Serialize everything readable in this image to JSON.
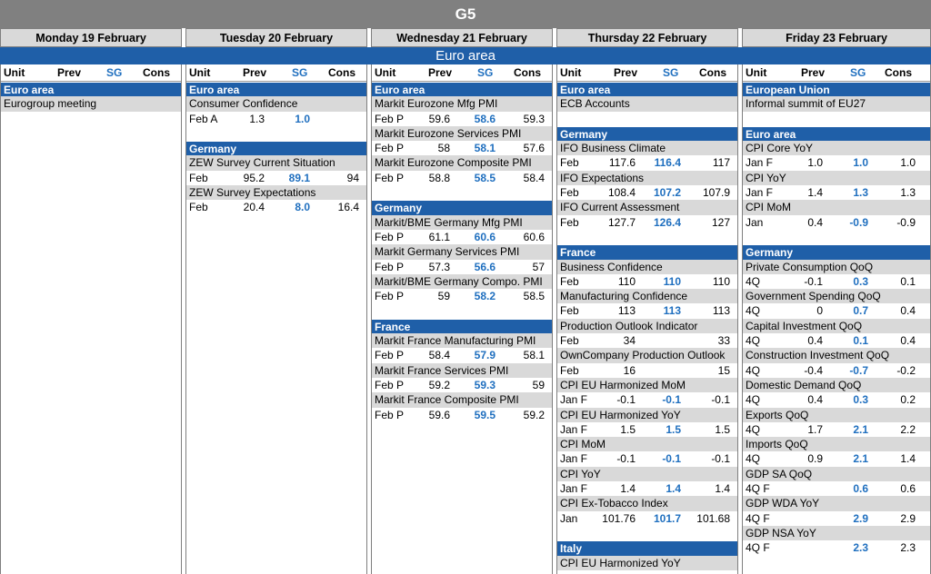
{
  "title": "G5",
  "region": "Euro area",
  "columns_header": {
    "unit": "Unit",
    "prev": "Prev",
    "sg": "SG",
    "cons": "Cons"
  },
  "days": [
    {
      "label": "Monday 19 February",
      "rows": [
        {
          "type": "sec",
          "text": "Euro area"
        },
        {
          "type": "ind",
          "text": "Eurogroup meeting"
        }
      ]
    },
    {
      "label": "Tuesday 20 February",
      "rows": [
        {
          "type": "sec",
          "text": "Euro area"
        },
        {
          "type": "ind",
          "text": "Consumer Confidence"
        },
        {
          "type": "val",
          "unit": "Feb A",
          "prev": "1.3",
          "sg": "1.0",
          "cons": ""
        },
        {
          "type": "blank"
        },
        {
          "type": "sec",
          "text": "Germany"
        },
        {
          "type": "ind",
          "text": "ZEW Survey Current Situation"
        },
        {
          "type": "val",
          "unit": "Feb",
          "prev": "95.2",
          "sg": "89.1",
          "cons": "94"
        },
        {
          "type": "ind",
          "text": "ZEW Survey Expectations"
        },
        {
          "type": "val",
          "unit": "Feb",
          "prev": "20.4",
          "sg": "8.0",
          "cons": "16.4"
        }
      ]
    },
    {
      "label": "Wednesday 21 February",
      "rows": [
        {
          "type": "sec",
          "text": "Euro area"
        },
        {
          "type": "ind",
          "text": "Markit Eurozone Mfg PMI"
        },
        {
          "type": "val",
          "unit": "Feb P",
          "prev": "59.6",
          "sg": "58.6",
          "cons": "59.3"
        },
        {
          "type": "ind",
          "text": "Markit Eurozone Services PMI"
        },
        {
          "type": "val",
          "unit": "Feb P",
          "prev": "58",
          "sg": "58.1",
          "cons": "57.6"
        },
        {
          "type": "ind",
          "text": "Markit Eurozone Composite PMI"
        },
        {
          "type": "val",
          "unit": "Feb P",
          "prev": "58.8",
          "sg": "58.5",
          "cons": "58.4"
        },
        {
          "type": "blank"
        },
        {
          "type": "sec",
          "text": "Germany"
        },
        {
          "type": "ind",
          "text": "Markit/BME Germany Mfg PMI"
        },
        {
          "type": "val",
          "unit": "Feb P",
          "prev": "61.1",
          "sg": "60.6",
          "cons": "60.6"
        },
        {
          "type": "ind",
          "text": "Markit Germany Services PMI"
        },
        {
          "type": "val",
          "unit": "Feb P",
          "prev": "57.3",
          "sg": "56.6",
          "cons": "57"
        },
        {
          "type": "ind",
          "text": "Markit/BME Germany Compo. PMI"
        },
        {
          "type": "val",
          "unit": "Feb P",
          "prev": "59",
          "sg": "58.2",
          "cons": "58.5"
        },
        {
          "type": "blank"
        },
        {
          "type": "sec",
          "text": "France"
        },
        {
          "type": "ind",
          "text": "Markit France Manufacturing PMI"
        },
        {
          "type": "val",
          "unit": "Feb P",
          "prev": "58.4",
          "sg": "57.9",
          "cons": "58.1"
        },
        {
          "type": "ind",
          "text": "Markit France Services PMI"
        },
        {
          "type": "val",
          "unit": "Feb P",
          "prev": "59.2",
          "sg": "59.3",
          "cons": "59"
        },
        {
          "type": "ind",
          "text": "Markit France Composite PMI"
        },
        {
          "type": "val",
          "unit": "Feb P",
          "prev": "59.6",
          "sg": "59.5",
          "cons": "59.2"
        }
      ]
    },
    {
      "label": "Thursday 22 February",
      "rows": [
        {
          "type": "sec",
          "text": "Euro area"
        },
        {
          "type": "ind",
          "text": "ECB Accounts"
        },
        {
          "type": "blank"
        },
        {
          "type": "sec",
          "text": "Germany"
        },
        {
          "type": "ind",
          "text": "IFO Business Climate"
        },
        {
          "type": "val",
          "unit": "Feb",
          "prev": "117.6",
          "sg": "116.4",
          "cons": "117"
        },
        {
          "type": "ind",
          "text": "IFO Expectations"
        },
        {
          "type": "val",
          "unit": "Feb",
          "prev": "108.4",
          "sg": "107.2",
          "cons": "107.9"
        },
        {
          "type": "ind",
          "text": "IFO Current Assessment"
        },
        {
          "type": "val",
          "unit": "Feb",
          "prev": "127.7",
          "sg": "126.4",
          "cons": "127"
        },
        {
          "type": "blank"
        },
        {
          "type": "sec",
          "text": "France"
        },
        {
          "type": "ind",
          "text": "Business Confidence"
        },
        {
          "type": "val",
          "unit": "Feb",
          "prev": "110",
          "sg": "110",
          "cons": "110"
        },
        {
          "type": "ind",
          "text": "Manufacturing Confidence"
        },
        {
          "type": "val",
          "unit": "Feb",
          "prev": "113",
          "sg": "113",
          "cons": "113"
        },
        {
          "type": "ind",
          "text": "Production Outlook Indicator"
        },
        {
          "type": "val",
          "unit": "Feb",
          "prev": "34",
          "sg": "",
          "cons": "33"
        },
        {
          "type": "ind",
          "text": "OwnCompany Production Outlook"
        },
        {
          "type": "val",
          "unit": "Feb",
          "prev": "16",
          "sg": "",
          "cons": "15"
        },
        {
          "type": "ind",
          "text": "CPI EU Harmonized MoM"
        },
        {
          "type": "val",
          "unit": "Jan F",
          "prev": "-0.1",
          "sg": "-0.1",
          "cons": "-0.1"
        },
        {
          "type": "ind",
          "text": "CPI EU Harmonized YoY"
        },
        {
          "type": "val",
          "unit": "Jan F",
          "prev": "1.5",
          "sg": "1.5",
          "cons": "1.5"
        },
        {
          "type": "ind",
          "text": "CPI MoM"
        },
        {
          "type": "val",
          "unit": "Jan F",
          "prev": "-0.1",
          "sg": "-0.1",
          "cons": "-0.1"
        },
        {
          "type": "ind",
          "text": "CPI YoY"
        },
        {
          "type": "val",
          "unit": "Jan F",
          "prev": "1.4",
          "sg": "1.4",
          "cons": "1.4"
        },
        {
          "type": "ind",
          "text": "CPI Ex-Tobacco Index"
        },
        {
          "type": "val",
          "unit": "Jan",
          "prev": "101.76",
          "sg": "101.7",
          "cons": "101.68"
        },
        {
          "type": "blank"
        },
        {
          "type": "sec",
          "text": "Italy"
        },
        {
          "type": "ind",
          "text": "CPI EU Harmonized YoY"
        }
      ]
    },
    {
      "label": "Friday 23 February",
      "rows": [
        {
          "type": "sec",
          "text": "European Union"
        },
        {
          "type": "ind",
          "text": "Informal summit of EU27"
        },
        {
          "type": "blank"
        },
        {
          "type": "sec",
          "text": "Euro area"
        },
        {
          "type": "ind",
          "text": "CPI Core YoY"
        },
        {
          "type": "val",
          "unit": "Jan F",
          "prev": "1.0",
          "sg": "1.0",
          "cons": "1.0"
        },
        {
          "type": "ind",
          "text": "CPI YoY"
        },
        {
          "type": "val",
          "unit": "Jan F",
          "prev": "1.4",
          "sg": "1.3",
          "cons": "1.3"
        },
        {
          "type": "ind",
          "text": "CPI MoM"
        },
        {
          "type": "val",
          "unit": "Jan",
          "prev": "0.4",
          "sg": "-0.9",
          "cons": "-0.9"
        },
        {
          "type": "blank"
        },
        {
          "type": "sec",
          "text": "Germany"
        },
        {
          "type": "ind",
          "text": "Private Consumption QoQ"
        },
        {
          "type": "val",
          "unit": "4Q",
          "prev": "-0.1",
          "sg": "0.3",
          "cons": "0.1"
        },
        {
          "type": "ind",
          "text": "Government Spending QoQ"
        },
        {
          "type": "val",
          "unit": "4Q",
          "prev": "0",
          "sg": "0.7",
          "cons": "0.4"
        },
        {
          "type": "ind",
          "text": "Capital Investment QoQ"
        },
        {
          "type": "val",
          "unit": "4Q",
          "prev": "0.4",
          "sg": "0.1",
          "cons": "0.4"
        },
        {
          "type": "ind",
          "text": "Construction Investment QoQ"
        },
        {
          "type": "val",
          "unit": "4Q",
          "prev": "-0.4",
          "sg": "-0.7",
          "cons": "-0.2"
        },
        {
          "type": "ind",
          "text": "Domestic Demand QoQ"
        },
        {
          "type": "val",
          "unit": "4Q",
          "prev": "0.4",
          "sg": "0.3",
          "cons": "0.2"
        },
        {
          "type": "ind",
          "text": "Exports QoQ"
        },
        {
          "type": "val",
          "unit": "4Q",
          "prev": "1.7",
          "sg": "2.1",
          "cons": "2.2"
        },
        {
          "type": "ind",
          "text": "Imports QoQ"
        },
        {
          "type": "val",
          "unit": "4Q",
          "prev": "0.9",
          "sg": "2.1",
          "cons": "1.4"
        },
        {
          "type": "ind",
          "text": "GDP SA QoQ"
        },
        {
          "type": "val",
          "unit": "4Q F",
          "prev": "",
          "sg": "0.6",
          "cons": "0.6"
        },
        {
          "type": "ind",
          "text": "GDP WDA YoY"
        },
        {
          "type": "val",
          "unit": "4Q F",
          "prev": "",
          "sg": "2.9",
          "cons": "2.9"
        },
        {
          "type": "ind",
          "text": "GDP NSA YoY"
        },
        {
          "type": "val",
          "unit": "4Q F",
          "prev": "",
          "sg": "2.3",
          "cons": "2.3"
        }
      ]
    }
  ]
}
